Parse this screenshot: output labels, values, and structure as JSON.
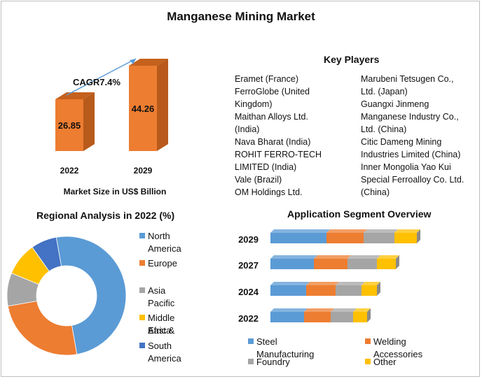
{
  "title": "Manganese Mining Market",
  "colors": {
    "steel": "#5b9bd5",
    "welding": "#ed7d31",
    "foundry": "#a5a5a5",
    "other": "#ffc000",
    "south_america": "#4472c4",
    "bar_orange": "#ed7d31",
    "bar_dark": "#b85a1b"
  },
  "key_players": {
    "title": "Key Players",
    "col1": [
      "Eramet (France)",
      "FerroGlobe (United",
      "Kingdom)",
      "Maithan Alloys Ltd.",
      "(India)",
      "Nava Bharat (India)",
      "ROHIT FERRO-TECH",
      "LIMITED (India)",
      "Vale (Brazil)",
      "OM Holdings Ltd."
    ],
    "col2": [
      "Marubeni Tetsugen Co.,",
      "Ltd. (Japan)",
      "Guangxi Jinmeng",
      "Manganese Industry Co.,",
      "Ltd. (China)",
      "Citic Dameng Mining",
      "Industries Limited (China)",
      "Inner Mongolia Yao Kui",
      "Special Ferroalloy Co. Ltd.",
      "(China)"
    ]
  },
  "regional_title": "Regional Analysis in 2022 (%)",
  "application_title": "Application Segment Overview",
  "chart_data": [
    {
      "type": "bar",
      "categories": [
        "2022",
        "2029"
      ],
      "values": [
        26.85,
        44.26
      ],
      "value_labels": [
        "26.85",
        "44.26"
      ],
      "xlabel": "Market Size in US$ Billion",
      "annotation": "CAGR7.4%"
    },
    {
      "type": "pie",
      "title": "Regional Analysis in 2022 (%)",
      "labels": [
        "North America",
        "Europe",
        "Asia Pacific",
        "Middle East & Africa",
        "South America"
      ],
      "label_lines": [
        [
          "North America"
        ],
        [
          "Europe"
        ],
        [
          "Asia Pacific"
        ],
        [
          "Middle East &",
          "Africa"
        ],
        [
          "South America"
        ]
      ],
      "values": [
        50,
        25,
        9,
        9,
        7
      ],
      "colors": [
        "#5b9bd5",
        "#ed7d31",
        "#a5a5a5",
        "#ffc000",
        "#4472c4"
      ],
      "legend": "right"
    },
    {
      "type": "bar",
      "orientation": "horizontal",
      "stacked": true,
      "title": "Application Segment Overview",
      "categories": [
        "2029",
        "2027",
        "2024",
        "2022"
      ],
      "series": [
        {
          "name": "Steel Manufacturing",
          "values": [
            80,
            62,
            51,
            48
          ],
          "color": "#5b9bd5"
        },
        {
          "name": "Welding Accessories",
          "values": [
            53,
            48,
            42,
            38
          ],
          "color": "#ed7d31"
        },
        {
          "name": "Foundry",
          "values": [
            44,
            42,
            37,
            32
          ],
          "color": "#a5a5a5"
        },
        {
          "name": "Other",
          "values": [
            32,
            27,
            22,
            20
          ],
          "color": "#ffc000"
        }
      ],
      "legend": "bottom"
    }
  ]
}
